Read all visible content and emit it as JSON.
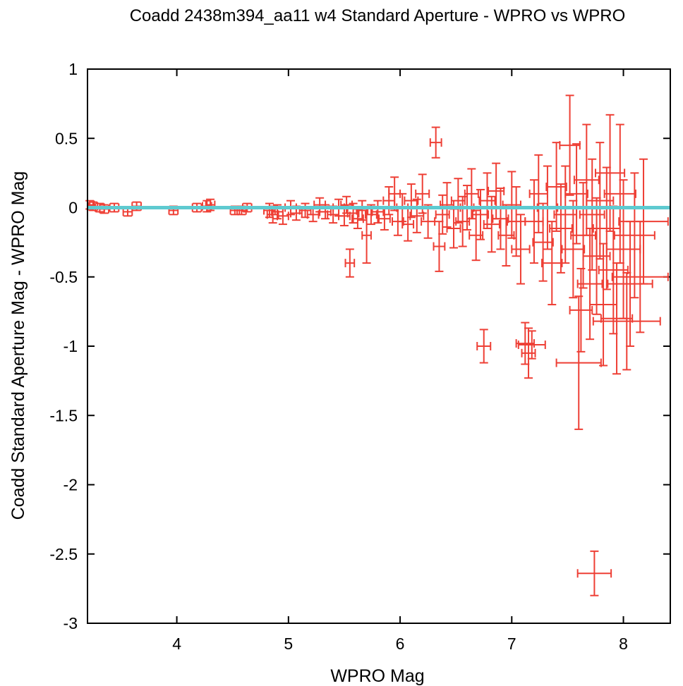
{
  "chart_data": {
    "type": "scatter",
    "title": "Coadd 2438m394_aa11 w4 Standard Aperture - WPRO vs WPRO",
    "xlabel": "WPRO Mag",
    "ylabel": "Coadd Standard Aperture Mag - WPRO Mag",
    "xlim": [
      3.2,
      8.42
    ],
    "ylim": [
      -3,
      1
    ],
    "xticks": [
      4,
      5,
      6,
      7,
      8
    ],
    "yticks": [
      1,
      0.5,
      0,
      -0.5,
      -1,
      -1.5,
      -2,
      -2.5,
      -3
    ],
    "xtick_labels": [
      "4",
      "5",
      "6",
      "7",
      "8"
    ],
    "ytick_labels": [
      "1",
      "0.5",
      "0",
      "-0.5",
      "-1",
      "-1.5",
      "-2",
      "-2.5",
      "-3"
    ],
    "grid": false,
    "legend": "none",
    "colors": {
      "points": "#ee3f35",
      "reference_line": "#5ecad0",
      "axes": "#000000"
    },
    "reference_line": {
      "y": 0
    },
    "series": [
      {
        "points": [
          {
            "x": 3.22,
            "y": 0.02,
            "xerr": 0.04,
            "yerr": 0.03
          },
          {
            "x": 3.25,
            "y": 0.01,
            "xerr": 0.04,
            "yerr": 0.03
          },
          {
            "x": 3.31,
            "y": 0.0,
            "xerr": 0.04,
            "yerr": 0.03
          },
          {
            "x": 3.35,
            "y": -0.01,
            "xerr": 0.04,
            "yerr": 0.03
          },
          {
            "x": 3.44,
            "y": 0.0,
            "xerr": 0.04,
            "yerr": 0.03
          },
          {
            "x": 3.56,
            "y": -0.03,
            "xerr": 0.04,
            "yerr": 0.03
          },
          {
            "x": 3.64,
            "y": 0.01,
            "xerr": 0.04,
            "yerr": 0.03
          },
          {
            "x": 3.97,
            "y": -0.02,
            "xerr": 0.04,
            "yerr": 0.03
          },
          {
            "x": 4.18,
            "y": 0.0,
            "xerr": 0.04,
            "yerr": 0.03
          },
          {
            "x": 4.27,
            "y": 0.01,
            "xerr": 0.04,
            "yerr": 0.04
          },
          {
            "x": 4.3,
            "y": 0.02,
            "xerr": 0.04,
            "yerr": 0.04
          },
          {
            "x": 4.52,
            "y": -0.02,
            "xerr": 0.04,
            "yerr": 0.03
          },
          {
            "x": 4.58,
            "y": -0.02,
            "xerr": 0.04,
            "yerr": 0.03
          },
          {
            "x": 4.63,
            "y": 0.0,
            "xerr": 0.04,
            "yerr": 0.03
          },
          {
            "x": 4.83,
            "y": -0.02,
            "xerr": 0.05,
            "yerr": 0.05
          },
          {
            "x": 4.86,
            "y": -0.05,
            "xerr": 0.05,
            "yerr": 0.06
          },
          {
            "x": 4.9,
            "y": -0.03,
            "xerr": 0.05,
            "yerr": 0.05
          },
          {
            "x": 4.95,
            "y": -0.06,
            "xerr": 0.05,
            "yerr": 0.06
          },
          {
            "x": 5.02,
            "y": 0.0,
            "xerr": 0.05,
            "yerr": 0.05
          },
          {
            "x": 5.07,
            "y": -0.04,
            "xerr": 0.05,
            "yerr": 0.05
          },
          {
            "x": 5.15,
            "y": -0.02,
            "xerr": 0.05,
            "yerr": 0.05
          },
          {
            "x": 5.22,
            "y": -0.05,
            "xerr": 0.05,
            "yerr": 0.05
          },
          {
            "x": 5.28,
            "y": 0.02,
            "xerr": 0.05,
            "yerr": 0.05
          },
          {
            "x": 5.33,
            "y": -0.03,
            "xerr": 0.05,
            "yerr": 0.05
          },
          {
            "x": 5.4,
            "y": -0.05,
            "xerr": 0.05,
            "yerr": 0.06
          },
          {
            "x": 5.45,
            "y": 0.0,
            "xerr": 0.05,
            "yerr": 0.06
          },
          {
            "x": 5.5,
            "y": -0.06,
            "xerr": 0.05,
            "yerr": 0.07
          },
          {
            "x": 5.52,
            "y": 0.02,
            "xerr": 0.05,
            "yerr": 0.06
          },
          {
            "x": 5.55,
            "y": -0.4,
            "xerr": 0.04,
            "yerr": 0.1
          },
          {
            "x": 5.58,
            "y": -0.04,
            "xerr": 0.05,
            "yerr": 0.07
          },
          {
            "x": 5.62,
            "y": -0.08,
            "xerr": 0.05,
            "yerr": 0.07
          },
          {
            "x": 5.66,
            "y": -0.02,
            "xerr": 0.05,
            "yerr": 0.07
          },
          {
            "x": 5.7,
            "y": -0.2,
            "xerr": 0.04,
            "yerr": 0.2
          },
          {
            "x": 5.74,
            "y": -0.05,
            "xerr": 0.05,
            "yerr": 0.07
          },
          {
            "x": 5.8,
            "y": -0.03,
            "xerr": 0.05,
            "yerr": 0.08
          },
          {
            "x": 5.86,
            "y": -0.08,
            "xerr": 0.05,
            "yerr": 0.08
          },
          {
            "x": 5.9,
            "y": 0.05,
            "xerr": 0.05,
            "yerr": 0.1
          },
          {
            "x": 5.95,
            "y": 0.1,
            "xerr": 0.05,
            "yerr": 0.12
          },
          {
            "x": 5.98,
            "y": -0.1,
            "xerr": 0.05,
            "yerr": 0.1
          },
          {
            "x": 6.02,
            "y": 0.0,
            "xerr": 0.05,
            "yerr": 0.1
          },
          {
            "x": 6.07,
            "y": -0.12,
            "xerr": 0.05,
            "yerr": 0.12
          },
          {
            "x": 6.1,
            "y": 0.05,
            "xerr": 0.06,
            "yerr": 0.12
          },
          {
            "x": 6.15,
            "y": -0.06,
            "xerr": 0.06,
            "yerr": 0.12
          },
          {
            "x": 6.2,
            "y": 0.1,
            "xerr": 0.06,
            "yerr": 0.14
          },
          {
            "x": 6.25,
            "y": -0.1,
            "xerr": 0.06,
            "yerr": 0.12
          },
          {
            "x": 6.32,
            "y": 0.47,
            "xerr": 0.05,
            "yerr": 0.11
          },
          {
            "x": 6.35,
            "y": -0.28,
            "xerr": 0.05,
            "yerr": 0.18
          },
          {
            "x": 6.38,
            "y": -0.05,
            "xerr": 0.06,
            "yerr": 0.14
          },
          {
            "x": 6.42,
            "y": 0.02,
            "xerr": 0.06,
            "yerr": 0.16
          },
          {
            "x": 6.48,
            "y": -0.15,
            "xerr": 0.06,
            "yerr": 0.14
          },
          {
            "x": 6.52,
            "y": 0.05,
            "xerr": 0.06,
            "yerr": 0.16
          },
          {
            "x": 6.56,
            "y": -0.1,
            "xerr": 0.06,
            "yerr": 0.18
          },
          {
            "x": 6.6,
            "y": 0.0,
            "xerr": 0.06,
            "yerr": 0.16
          },
          {
            "x": 6.64,
            "y": 0.1,
            "xerr": 0.06,
            "yerr": 0.18
          },
          {
            "x": 6.68,
            "y": -0.2,
            "xerr": 0.06,
            "yerr": 0.18
          },
          {
            "x": 6.72,
            "y": -0.05,
            "xerr": 0.07,
            "yerr": 0.18
          },
          {
            "x": 6.75,
            "y": -1.0,
            "xerr": 0.06,
            "yerr": 0.12
          },
          {
            "x": 6.78,
            "y": 0.05,
            "xerr": 0.07,
            "yerr": 0.2
          },
          {
            "x": 6.82,
            "y": -0.12,
            "xerr": 0.07,
            "yerr": 0.2
          },
          {
            "x": 6.86,
            "y": 0.12,
            "xerr": 0.07,
            "yerr": 0.2
          },
          {
            "x": 6.9,
            "y": -0.08,
            "xerr": 0.07,
            "yerr": 0.22
          },
          {
            "x": 6.95,
            "y": -0.2,
            "xerr": 0.07,
            "yerr": 0.22
          },
          {
            "x": 7.0,
            "y": 0.02,
            "xerr": 0.08,
            "yerr": 0.24
          },
          {
            "x": 7.04,
            "y": -0.1,
            "xerr": 0.08,
            "yerr": 0.25
          },
          {
            "x": 7.08,
            "y": -0.3,
            "xerr": 0.08,
            "yerr": 0.25
          },
          {
            "x": 7.12,
            "y": -0.98,
            "xerr": 0.08,
            "yerr": 0.15
          },
          {
            "x": 7.15,
            "y": -1.05,
            "xerr": 0.06,
            "yerr": 0.18
          },
          {
            "x": 7.18,
            "y": -0.99,
            "xerr": 0.12,
            "yerr": 0.1
          },
          {
            "x": 7.2,
            "y": -0.1,
            "xerr": 0.08,
            "yerr": 0.3
          },
          {
            "x": 7.24,
            "y": 0.1,
            "xerr": 0.08,
            "yerr": 0.28
          },
          {
            "x": 7.28,
            "y": -0.25,
            "xerr": 0.09,
            "yerr": 0.28
          },
          {
            "x": 7.32,
            "y": 0.0,
            "xerr": 0.09,
            "yerr": 0.3
          },
          {
            "x": 7.36,
            "y": -0.4,
            "xerr": 0.09,
            "yerr": 0.3
          },
          {
            "x": 7.4,
            "y": 0.15,
            "xerr": 0.09,
            "yerr": 0.32
          },
          {
            "x": 7.44,
            "y": -0.15,
            "xerr": 0.1,
            "yerr": 0.32
          },
          {
            "x": 7.48,
            "y": -0.05,
            "xerr": 0.1,
            "yerr": 0.35
          },
          {
            "x": 7.52,
            "y": 0.45,
            "xerr": 0.09,
            "yerr": 0.36
          },
          {
            "x": 7.55,
            "y": -0.3,
            "xerr": 0.1,
            "yerr": 0.35
          },
          {
            "x": 7.58,
            "y": 0.1,
            "xerr": 0.1,
            "yerr": 0.36
          },
          {
            "x": 7.6,
            "y": -1.12,
            "xerr": 0.2,
            "yerr": 0.48
          },
          {
            "x": 7.62,
            "y": -0.74,
            "xerr": 0.1,
            "yerr": 0.3
          },
          {
            "x": 7.64,
            "y": -0.2,
            "xerr": 0.11,
            "yerr": 0.38
          },
          {
            "x": 7.67,
            "y": 0.2,
            "xerr": 0.11,
            "yerr": 0.4
          },
          {
            "x": 7.7,
            "y": -0.55,
            "xerr": 0.11,
            "yerr": 0.4
          },
          {
            "x": 7.72,
            "y": -0.05,
            "xerr": 0.11,
            "yerr": 0.4
          },
          {
            "x": 7.74,
            "y": -2.64,
            "xerr": 0.15,
            "yerr": 0.16
          },
          {
            "x": 7.76,
            "y": -0.35,
            "xerr": 0.12,
            "yerr": 0.42
          },
          {
            "x": 7.79,
            "y": 0.05,
            "xerr": 0.12,
            "yerr": 0.42
          },
          {
            "x": 7.82,
            "y": -0.7,
            "xerr": 0.12,
            "yerr": 0.44
          },
          {
            "x": 7.85,
            "y": -0.15,
            "xerr": 0.12,
            "yerr": 0.44
          },
          {
            "x": 7.88,
            "y": 0.25,
            "xerr": 0.13,
            "yerr": 0.42
          },
          {
            "x": 7.91,
            "y": -0.45,
            "xerr": 0.13,
            "yerr": 0.46
          },
          {
            "x": 7.94,
            "y": -0.8,
            "xerr": 0.14,
            "yerr": 0.4
          },
          {
            "x": 7.97,
            "y": 0.1,
            "xerr": 0.14,
            "yerr": 0.5
          },
          {
            "x": 8.0,
            "y": -0.3,
            "xerr": 0.15,
            "yerr": 0.5
          },
          {
            "x": 8.03,
            "y": -0.82,
            "xerr": 0.3,
            "yerr": 0.35
          },
          {
            "x": 8.06,
            "y": -0.55,
            "xerr": 0.2,
            "yerr": 0.45
          },
          {
            "x": 8.1,
            "y": -0.2,
            "xerr": 0.18,
            "yerr": 0.45
          },
          {
            "x": 8.15,
            "y": -0.5,
            "xerr": 0.25,
            "yerr": 0.4
          },
          {
            "x": 8.18,
            "y": -0.1,
            "xerr": 0.22,
            "yerr": 0.45
          }
        ]
      }
    ]
  }
}
